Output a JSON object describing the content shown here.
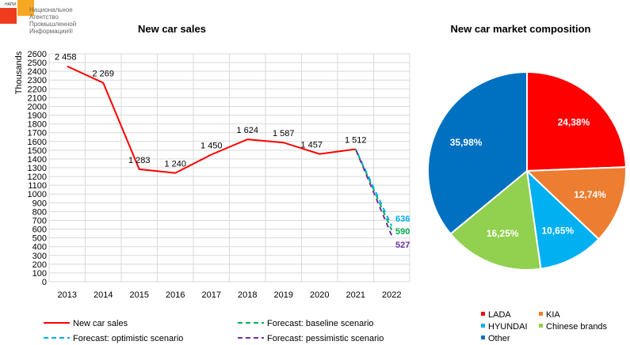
{
  "logo": {
    "abbr": "НАПИ",
    "line1": "Национальное",
    "line2": "Агентство",
    "line3": "Промышленной",
    "line4": "Информации®"
  },
  "chart_data": [
    {
      "type": "line",
      "title": "New car sales",
      "ylabel": "Thousands",
      "ylim": [
        0,
        2600
      ],
      "ytick_step": 100,
      "grid": true,
      "legend_position": "bottom",
      "categories": [
        "2013",
        "2014",
        "2015",
        "2016",
        "2017",
        "2018",
        "2019",
        "2020",
        "2021",
        "2022"
      ],
      "series": [
        {
          "name": "New car sales",
          "color": "#ff0000",
          "dash": false,
          "values": [
            2458,
            2269,
            1283,
            1240,
            1450,
            1624,
            1587,
            1457,
            1512,
            null
          ],
          "labels": [
            "2 458",
            "2 269",
            "1 283",
            "1 240",
            "1 450",
            "1 624",
            "1 587",
            "1 457",
            "1 512",
            ""
          ]
        },
        {
          "name": "Forecast: baseline scenario",
          "color": "#00b050",
          "dash": true,
          "values": [
            null,
            null,
            null,
            null,
            null,
            null,
            null,
            null,
            1512,
            590
          ],
          "end_label": "590"
        },
        {
          "name": "Forecast: optimistic scenario",
          "color": "#00b0f0",
          "dash": true,
          "values": [
            null,
            null,
            null,
            null,
            null,
            null,
            null,
            null,
            1512,
            636
          ],
          "end_label": "636"
        },
        {
          "name": "Forecast: pessimistic scenario",
          "color": "#7030a0",
          "dash": true,
          "values": [
            null,
            null,
            null,
            null,
            null,
            null,
            null,
            null,
            1512,
            527
          ],
          "end_label": "527"
        }
      ]
    },
    {
      "type": "pie",
      "title": "New car market composition",
      "legend_position": "bottom-right",
      "slices": [
        {
          "name": "LADA",
          "value": 24.38,
          "label": "24,38%",
          "color": "#ff0000"
        },
        {
          "name": "KIA",
          "value": 12.74,
          "label": "12,74%",
          "color": "#ed7d31"
        },
        {
          "name": "HYUNDAI",
          "value": 10.65,
          "label": "10,65%",
          "color": "#00b0f0"
        },
        {
          "name": "Chinese brands",
          "value": 16.25,
          "label": "16,25%",
          "color": "#92d050"
        },
        {
          "name": "Other",
          "value": 35.98,
          "label": "35,98%",
          "color": "#0070c0"
        }
      ]
    }
  ]
}
